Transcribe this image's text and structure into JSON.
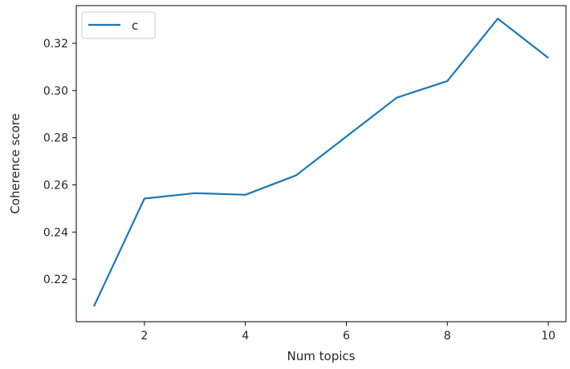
{
  "chart_data": {
    "type": "line",
    "xlabel": "Num topics",
    "ylabel": "Coherence score",
    "xlim": [
      0.65,
      10.35
    ],
    "ylim": [
      0.202,
      0.336
    ],
    "xticks": [
      2,
      4,
      6,
      8,
      10
    ],
    "yticks": [
      0.22,
      0.24,
      0.26,
      0.28,
      0.3,
      0.32
    ],
    "ytick_labels": [
      "0.22",
      "0.24",
      "0.26",
      "0.28",
      "0.30",
      "0.32"
    ],
    "grid": false,
    "legend_position": "top-left",
    "series": [
      {
        "name": "c",
        "color": "#1f77b4",
        "x": [
          1,
          2,
          3,
          4,
          5,
          6,
          7,
          8,
          9,
          10
        ],
        "y": [
          0.2085,
          0.2542,
          0.2565,
          0.2558,
          0.264,
          0.2805,
          0.297,
          0.304,
          0.3305,
          0.3138
        ]
      }
    ]
  }
}
